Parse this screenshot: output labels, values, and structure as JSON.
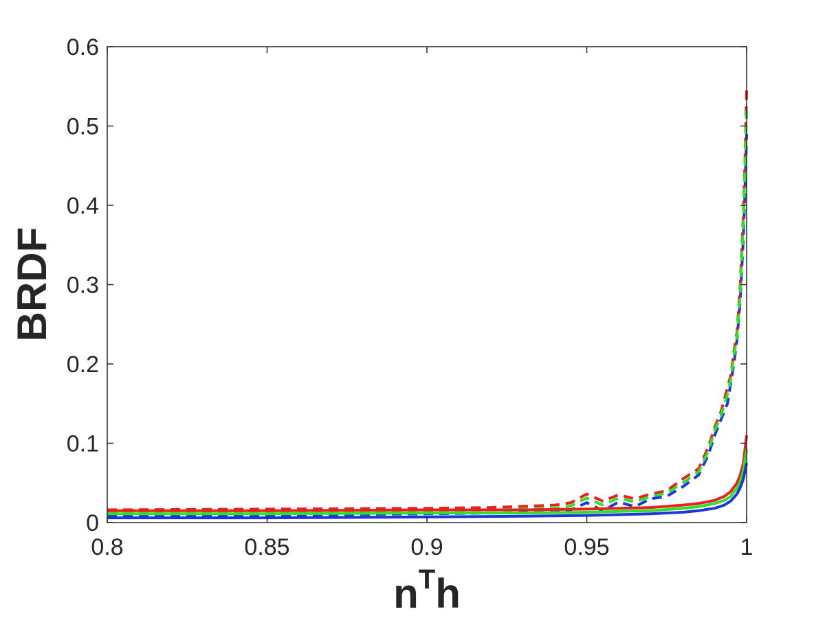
{
  "chart_data": {
    "type": "line",
    "xlabel": {
      "main": "n",
      "sup": "T",
      "tail": "h"
    },
    "ylabel": "BRDF",
    "xlim": [
      0.8,
      1.0
    ],
    "ylim": [
      0,
      0.6
    ],
    "xticks": [
      0.8,
      0.85,
      0.9,
      0.95,
      1.0
    ],
    "xtick_labels": [
      "0.8",
      "0.85",
      "0.9",
      "0.95",
      "1"
    ],
    "yticks": [
      0,
      0.1,
      0.2,
      0.3,
      0.4,
      0.5,
      0.6
    ],
    "ytick_labels": [
      "0",
      "0.1",
      "0.2",
      "0.3",
      "0.4",
      "0.5",
      "0.6"
    ],
    "grid": false,
    "series": [
      {
        "color": "#e8211b",
        "style": "solid",
        "x": [
          0.8,
          0.85,
          0.9,
          0.93,
          0.95,
          0.96,
          0.97,
          0.98,
          0.985,
          0.99,
          0.993,
          0.995,
          0.997,
          0.998,
          0.999,
          1.0
        ],
        "y": [
          0.015,
          0.015,
          0.016,
          0.016,
          0.017,
          0.018,
          0.019,
          0.022,
          0.024,
          0.028,
          0.033,
          0.039,
          0.05,
          0.06,
          0.075,
          0.11
        ]
      },
      {
        "color": "#2de02d",
        "style": "solid",
        "x": [
          0.8,
          0.85,
          0.9,
          0.93,
          0.95,
          0.96,
          0.97,
          0.98,
          0.985,
          0.99,
          0.993,
          0.995,
          0.997,
          0.998,
          0.999,
          1.0
        ],
        "y": [
          0.011,
          0.011,
          0.012,
          0.012,
          0.013,
          0.014,
          0.015,
          0.018,
          0.02,
          0.024,
          0.028,
          0.033,
          0.043,
          0.052,
          0.065,
          0.092
        ]
      },
      {
        "color": "#1f35d6",
        "style": "solid",
        "x": [
          0.8,
          0.85,
          0.9,
          0.93,
          0.95,
          0.96,
          0.97,
          0.98,
          0.985,
          0.99,
          0.993,
          0.995,
          0.997,
          0.998,
          0.999,
          1.0
        ],
        "y": [
          0.006,
          0.006,
          0.007,
          0.008,
          0.009,
          0.01,
          0.011,
          0.013,
          0.015,
          0.018,
          0.022,
          0.027,
          0.036,
          0.044,
          0.055,
          0.075
        ]
      },
      {
        "color": "#1f35d6",
        "style": "dashed",
        "x": [
          0.8,
          0.85,
          0.9,
          0.92,
          0.94,
          0.945,
          0.95,
          0.955,
          0.96,
          0.965,
          0.97,
          0.975,
          0.98,
          0.985,
          0.988,
          0.99,
          0.992,
          0.994,
          0.995,
          0.996,
          0.997,
          0.998,
          0.999,
          0.9995,
          1.0
        ],
        "y": [
          0.008,
          0.009,
          0.011,
          0.012,
          0.013,
          0.016,
          0.025,
          0.015,
          0.026,
          0.02,
          0.03,
          0.033,
          0.045,
          0.06,
          0.085,
          0.11,
          0.13,
          0.15,
          0.175,
          0.2,
          0.23,
          0.28,
          0.36,
          0.42,
          0.49
        ]
      },
      {
        "color": "#e8211b",
        "style": "dashed",
        "x": [
          0.8,
          0.85,
          0.9,
          0.92,
          0.94,
          0.945,
          0.95,
          0.955,
          0.96,
          0.965,
          0.97,
          0.975,
          0.98,
          0.985,
          0.988,
          0.99,
          0.992,
          0.994,
          0.995,
          0.996,
          0.997,
          0.998,
          0.999,
          0.9995,
          1.0
        ],
        "y": [
          0.016,
          0.017,
          0.018,
          0.019,
          0.022,
          0.025,
          0.036,
          0.027,
          0.035,
          0.03,
          0.036,
          0.04,
          0.055,
          0.068,
          0.095,
          0.12,
          0.14,
          0.17,
          0.185,
          0.215,
          0.24,
          0.3,
          0.39,
          0.46,
          0.545
        ]
      },
      {
        "color": "#2de02d",
        "style": "dashed",
        "x": [
          0.8,
          0.85,
          0.9,
          0.92,
          0.94,
          0.945,
          0.95,
          0.955,
          0.96,
          0.965,
          0.97,
          0.975,
          0.98,
          0.985,
          0.988,
          0.99,
          0.992,
          0.994,
          0.995,
          0.996,
          0.997,
          0.998,
          0.999,
          0.9995,
          1.0
        ],
        "y": [
          0.013,
          0.014,
          0.015,
          0.016,
          0.018,
          0.021,
          0.031,
          0.022,
          0.031,
          0.026,
          0.033,
          0.037,
          0.05,
          0.064,
          0.09,
          0.116,
          0.135,
          0.162,
          0.18,
          0.21,
          0.235,
          0.29,
          0.38,
          0.45,
          0.52
        ]
      }
    ]
  }
}
